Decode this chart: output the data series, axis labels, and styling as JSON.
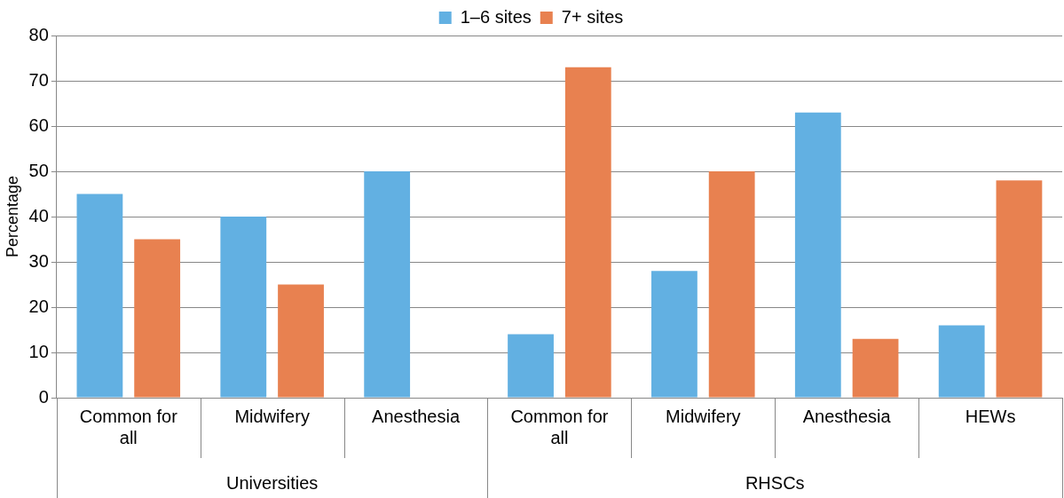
{
  "chart_data": {
    "type": "bar",
    "categories": [
      "Common for all",
      "Midwifery",
      "Anesthesia",
      "Common for all",
      "Midwifery",
      "Anesthesia",
      "HEWs"
    ],
    "series": [
      {
        "name": "1–6 sites",
        "color": "#62b0e2",
        "values": [
          45,
          40,
          50,
          14,
          28,
          63,
          16
        ]
      },
      {
        "name": "7+ sites",
        "color": "#e88150",
        "values": [
          35,
          25,
          0,
          73,
          50,
          13,
          48
        ]
      }
    ],
    "ylabel": "Percentage",
    "ylim": [
      0,
      80
    ],
    "yticks": [
      0,
      10,
      20,
      30,
      40,
      50,
      60,
      70,
      80
    ],
    "annotations": [
      "Universities",
      "RHSCs"
    ],
    "grid": "y",
    "legend": "top"
  }
}
